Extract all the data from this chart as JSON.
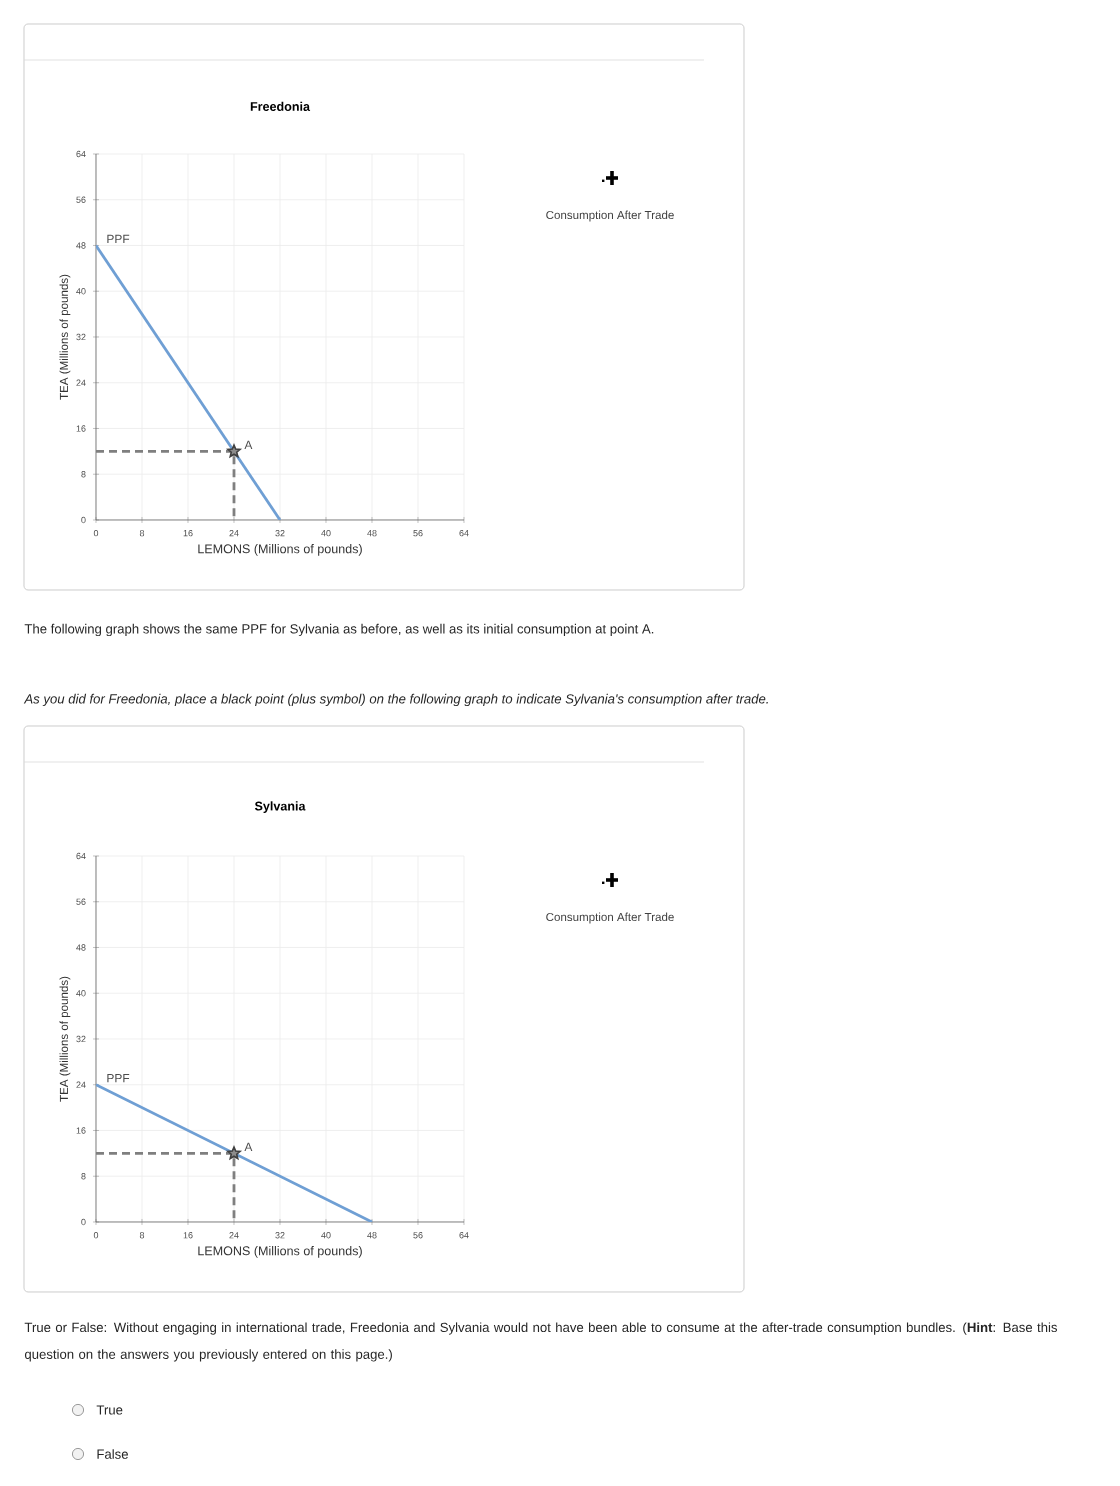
{
  "chart_data": [
    {
      "type": "line",
      "title": "Freedonia",
      "xlabel": "LEMONS (Millions of pounds)",
      "ylabel": "TEA (Millions of pounds)",
      "xlim": [
        0,
        64
      ],
      "ylim": [
        0,
        64
      ],
      "xticks": [
        0,
        8,
        16,
        24,
        32,
        40,
        48,
        56,
        64
      ],
      "yticks": [
        0,
        8,
        16,
        24,
        32,
        40,
        48,
        56,
        64
      ],
      "grid": true,
      "series": [
        {
          "name": "PPF",
          "color": "#6f9fd4",
          "x": [
            0,
            32
          ],
          "values": [
            48,
            0
          ]
        },
        {
          "type": "line",
          "line_style": "dashed",
          "color": "#7f7f7f",
          "x": [
            0,
            24,
            24
          ],
          "values": [
            12,
            12,
            0
          ]
        },
        {
          "name": "A",
          "type": "scatter",
          "marker": "star",
          "color": "#404040",
          "x": [
            24
          ],
          "values": [
            12
          ]
        }
      ],
      "annotations": [
        "Consumption After Trade"
      ]
    },
    {
      "type": "line",
      "title": "Sylvania",
      "xlabel": "LEMONS (Millions of pounds)",
      "ylabel": "TEA (Millions of pounds)",
      "xlim": [
        0,
        64
      ],
      "ylim": [
        0,
        64
      ],
      "xticks": [
        0,
        8,
        16,
        24,
        32,
        40,
        48,
        56,
        64
      ],
      "yticks": [
        0,
        8,
        16,
        24,
        32,
        40,
        48,
        56,
        64
      ],
      "grid": true,
      "series": [
        {
          "name": "PPF",
          "color": "#6f9fd4",
          "x": [
            0,
            48
          ],
          "values": [
            24,
            0
          ]
        },
        {
          "type": "line",
          "line_style": "dashed",
          "color": "#7f7f7f",
          "x": [
            0,
            24,
            24
          ],
          "values": [
            12,
            12,
            0
          ]
        },
        {
          "name": "A",
          "type": "scatter",
          "marker": "star",
          "color": "#404040",
          "x": [
            24
          ],
          "values": [
            12
          ]
        }
      ],
      "annotations": [
        "Consumption After Trade",
        "The following graph shows the same PPF for Sylvania as before, as well as its initial consumption at point A.",
        "As you did for Freedonia, place a black point (plus symbol) on the following graph to indicate Sylvania's consumption after trade.",
        "True or False: Without engaging in international trade, Freedonia and Sylvania would not have been able to consume at the after-trade consumption bundles. (**Hint**: Base this question on the answers you previously entered on this page.)",
        "True",
        "False"
      ]
    }
  ]
}
